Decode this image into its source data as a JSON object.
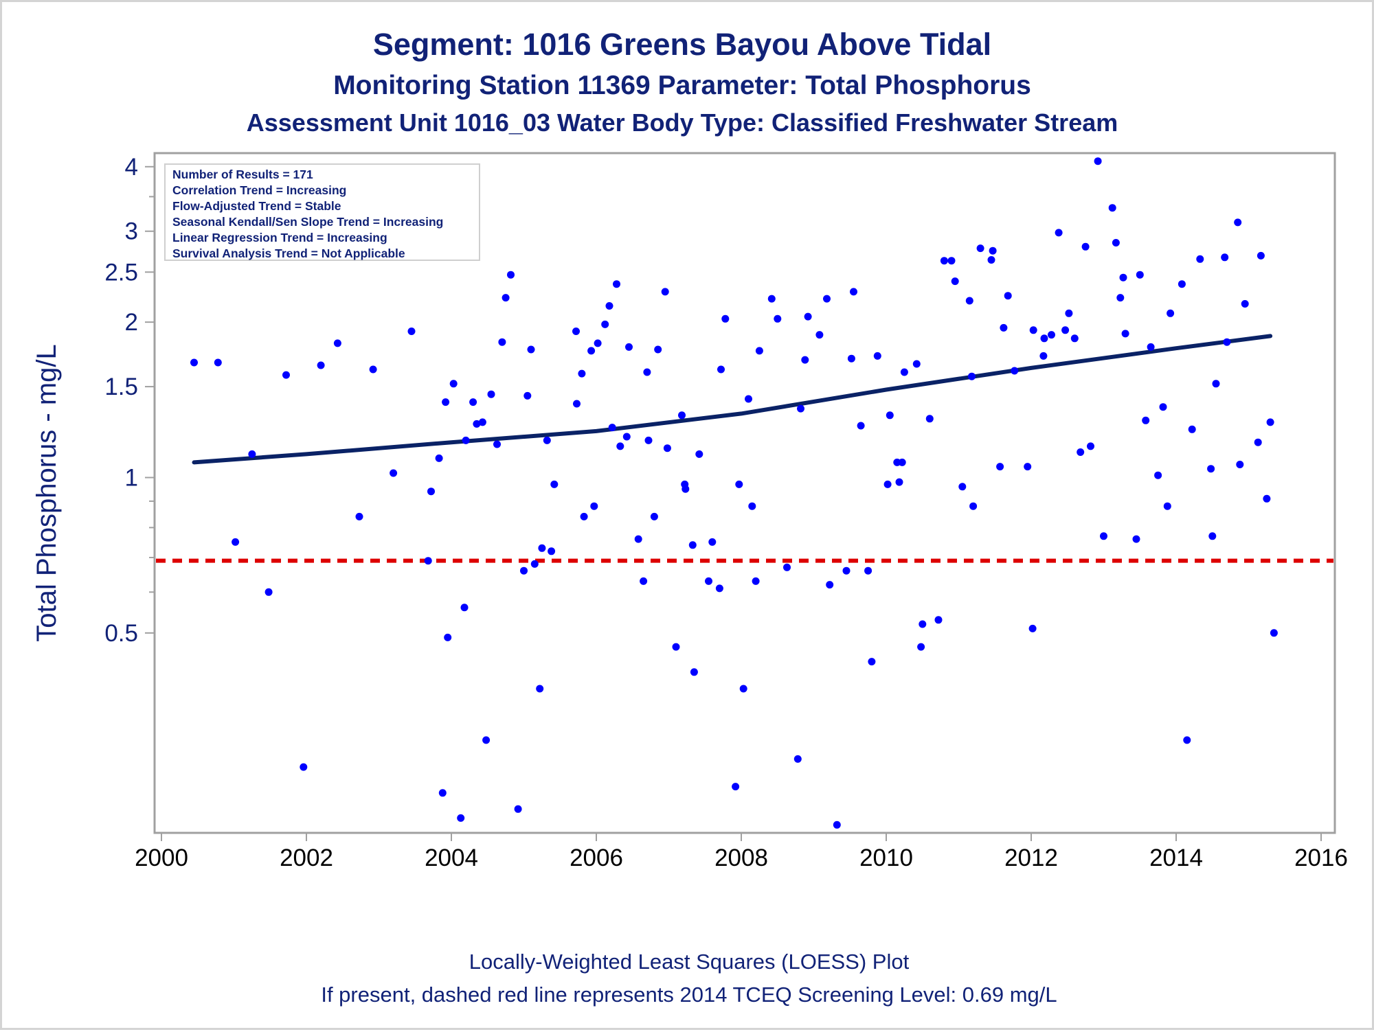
{
  "header": {
    "title": "Segment: 1016  Greens Bayou Above Tidal",
    "subtitle": "Monitoring Station 11369 Parameter: Total Phosphorus",
    "subtitle2": "Assessment Unit 1016_03   Water Body Type: Classified Freshwater Stream"
  },
  "stats": {
    "lines": [
      "Number of Results = 171",
      "Correlation Trend = Increasing",
      "Flow-Adjusted Trend = Stable",
      "Seasonal Kendall/Sen Slope Trend = Increasing",
      "Linear Regression Trend = Increasing",
      "Survival Analysis Trend = Not Applicable"
    ]
  },
  "footer": {
    "line1": "Locally-Weighted Least Squares (LOESS) Plot",
    "line2": "If present, dashed red line represents 2014 TCEQ Screening Level: 0.69 mg/L"
  },
  "colors": {
    "text": "#112277",
    "points": "#0000ff",
    "trend": "#0a2266",
    "screening": "#dd0000",
    "frame": "#a0a0a0"
  },
  "chart_data": {
    "type": "scatter",
    "title": "Segment: 1016  Greens Bayou Above Tidal",
    "xlabel": "",
    "ylabel": "Total Phosphorus - mg/L",
    "xlim": [
      2000,
      2016
    ],
    "ylim": [
      0.205,
      4.25
    ],
    "yscale": "log",
    "grid": false,
    "xticks": [
      2000,
      2002,
      2004,
      2006,
      2008,
      2010,
      2012,
      2014,
      2016
    ],
    "yticks": [
      0.5,
      1,
      1.5,
      2,
      2.5,
      3,
      4
    ],
    "yticklabels": [
      "0.5",
      "1",
      "1.5",
      "2",
      "2.5",
      "3",
      "4"
    ],
    "yminor": [
      0.6,
      0.7,
      0.8,
      0.9,
      3.5
    ],
    "screening_level": 0.69,
    "trend_line": {
      "x": [
        2000.45,
        2002,
        2004,
        2006,
        2008,
        2010,
        2012,
        2014,
        2015.3
      ],
      "y": [
        1.07,
        1.11,
        1.17,
        1.23,
        1.33,
        1.48,
        1.63,
        1.78,
        1.88
      ]
    },
    "series": [
      {
        "points": [
          [
            2000.45,
            1.67
          ],
          [
            2000.78,
            1.67
          ],
          [
            2001.02,
            0.75
          ],
          [
            2001.25,
            1.11
          ],
          [
            2001.48,
            0.6
          ],
          [
            2001.72,
            1.58
          ],
          [
            2001.96,
            0.275
          ],
          [
            2002.2,
            1.65
          ],
          [
            2002.43,
            1.82
          ],
          [
            2002.73,
            0.84
          ],
          [
            2002.92,
            1.62
          ],
          [
            2003.2,
            1.02
          ],
          [
            2003.45,
            1.92
          ],
          [
            2003.68,
            0.69
          ],
          [
            2003.72,
            0.94
          ],
          [
            2003.83,
            1.09
          ],
          [
            2003.88,
            0.245
          ],
          [
            2003.92,
            1.4
          ],
          [
            2003.95,
            0.49
          ],
          [
            2004.03,
            1.52
          ],
          [
            2004.13,
            0.219
          ],
          [
            2004.18,
            0.56
          ],
          [
            2004.2,
            1.18
          ],
          [
            2004.3,
            1.4
          ],
          [
            2004.35,
            1.27
          ],
          [
            2004.43,
            1.28
          ],
          [
            2004.48,
            0.31
          ],
          [
            2004.55,
            1.45
          ],
          [
            2004.63,
            1.16
          ],
          [
            2004.7,
            1.83
          ],
          [
            2004.75,
            2.23
          ],
          [
            2004.82,
            2.47
          ],
          [
            2004.92,
            0.228
          ],
          [
            2005.0,
            0.66
          ],
          [
            2005.05,
            1.44
          ],
          [
            2005.1,
            1.77
          ],
          [
            2005.15,
            0.68
          ],
          [
            2005.22,
            0.39
          ],
          [
            2005.25,
            0.73
          ],
          [
            2005.32,
            1.18
          ],
          [
            2005.38,
            0.72
          ],
          [
            2005.42,
            0.97
          ],
          [
            2005.72,
            1.92
          ],
          [
            2005.73,
            1.39
          ],
          [
            2005.8,
            1.59
          ],
          [
            2005.83,
            0.84
          ],
          [
            2005.93,
            1.76
          ],
          [
            2005.97,
            0.88
          ],
          [
            2006.02,
            1.82
          ],
          [
            2006.12,
            1.98
          ],
          [
            2006.18,
            2.15
          ],
          [
            2006.22,
            1.25
          ],
          [
            2006.28,
            2.37
          ],
          [
            2006.33,
            1.15
          ],
          [
            2006.42,
            1.2
          ],
          [
            2006.45,
            1.79
          ],
          [
            2006.58,
            0.76
          ],
          [
            2006.65,
            0.63
          ],
          [
            2006.7,
            1.6
          ],
          [
            2006.72,
            1.18
          ],
          [
            2006.8,
            0.84
          ],
          [
            2006.85,
            1.77
          ],
          [
            2006.95,
            2.29
          ],
          [
            2006.98,
            1.14
          ],
          [
            2007.1,
            0.47
          ],
          [
            2007.18,
            1.32
          ],
          [
            2007.22,
            0.97
          ],
          [
            2007.23,
            0.95
          ],
          [
            2007.33,
            0.74
          ],
          [
            2007.35,
            0.42
          ],
          [
            2007.42,
            1.11
          ],
          [
            2007.55,
            0.63
          ],
          [
            2007.6,
            0.75
          ],
          [
            2007.7,
            0.61
          ],
          [
            2007.72,
            1.62
          ],
          [
            2007.78,
            2.03
          ],
          [
            2007.92,
            0.252
          ],
          [
            2007.97,
            0.97
          ],
          [
            2008.03,
            0.39
          ],
          [
            2008.1,
            1.42
          ],
          [
            2008.15,
            0.88
          ],
          [
            2008.2,
            0.63
          ],
          [
            2008.25,
            1.76
          ],
          [
            2008.42,
            2.22
          ],
          [
            2008.5,
            2.03
          ],
          [
            2008.63,
            0.67
          ],
          [
            2008.78,
            0.285
          ],
          [
            2008.82,
            1.36
          ],
          [
            2008.88,
            1.69
          ],
          [
            2008.92,
            2.05
          ],
          [
            2009.08,
            1.89
          ],
          [
            2009.18,
            2.22
          ],
          [
            2009.22,
            0.62
          ],
          [
            2009.32,
            0.2125
          ],
          [
            2009.45,
            0.66
          ],
          [
            2009.52,
            1.7
          ],
          [
            2009.55,
            2.29
          ],
          [
            2009.65,
            1.26
          ],
          [
            2009.75,
            0.66
          ],
          [
            2009.8,
            0.44
          ],
          [
            2009.88,
            1.72
          ],
          [
            2010.02,
            0.97
          ],
          [
            2010.05,
            1.32
          ],
          [
            2010.15,
            1.07
          ],
          [
            2010.18,
            0.98
          ],
          [
            2010.22,
            1.07
          ],
          [
            2010.25,
            1.6
          ],
          [
            2010.42,
            1.66
          ],
          [
            2010.48,
            0.47
          ],
          [
            2010.5,
            0.52
          ],
          [
            2010.6,
            1.3
          ],
          [
            2010.72,
            0.53
          ],
          [
            2010.8,
            2.63
          ],
          [
            2010.9,
            2.63
          ],
          [
            2010.95,
            2.4
          ],
          [
            2011.05,
            0.96
          ],
          [
            2011.15,
            2.2
          ],
          [
            2011.18,
            1.57
          ],
          [
            2011.2,
            0.88
          ],
          [
            2011.3,
            2.78
          ],
          [
            2011.45,
            2.64
          ],
          [
            2011.47,
            2.75
          ],
          [
            2011.57,
            1.05
          ],
          [
            2011.62,
            1.95
          ],
          [
            2011.68,
            2.25
          ],
          [
            2011.77,
            1.61
          ],
          [
            2011.95,
            1.05
          ],
          [
            2012.02,
            0.51
          ],
          [
            2012.03,
            1.93
          ],
          [
            2012.17,
            1.72
          ],
          [
            2012.18,
            1.86
          ],
          [
            2012.28,
            1.89
          ],
          [
            2012.38,
            2.98
          ],
          [
            2012.47,
            1.93
          ],
          [
            2012.52,
            2.08
          ],
          [
            2012.6,
            1.86
          ],
          [
            2012.68,
            1.12
          ],
          [
            2012.75,
            2.8
          ],
          [
            2012.82,
            1.15
          ],
          [
            2012.92,
            4.1
          ],
          [
            2013.0,
            0.77
          ],
          [
            2013.12,
            3.33
          ],
          [
            2013.17,
            2.85
          ],
          [
            2013.23,
            2.23
          ],
          [
            2013.27,
            2.44
          ],
          [
            2013.3,
            1.9
          ],
          [
            2013.45,
            0.76
          ],
          [
            2013.5,
            2.47
          ],
          [
            2013.58,
            1.29
          ],
          [
            2013.65,
            1.79
          ],
          [
            2013.75,
            1.01
          ],
          [
            2013.82,
            1.37
          ],
          [
            2013.88,
            0.88
          ],
          [
            2013.92,
            2.08
          ],
          [
            2014.08,
            2.37
          ],
          [
            2014.15,
            0.31
          ],
          [
            2014.22,
            1.24
          ],
          [
            2014.33,
            2.65
          ],
          [
            2014.48,
            1.04
          ],
          [
            2014.5,
            0.77
          ],
          [
            2014.55,
            1.52
          ],
          [
            2014.67,
            2.67
          ],
          [
            2014.7,
            1.83
          ],
          [
            2014.85,
            3.12
          ],
          [
            2014.88,
            1.06
          ],
          [
            2014.95,
            2.17
          ],
          [
            2015.13,
            1.17
          ],
          [
            2015.17,
            2.69
          ],
          [
            2015.25,
            0.91
          ],
          [
            2015.3,
            1.28
          ],
          [
            2015.35,
            0.5
          ]
        ]
      }
    ]
  }
}
